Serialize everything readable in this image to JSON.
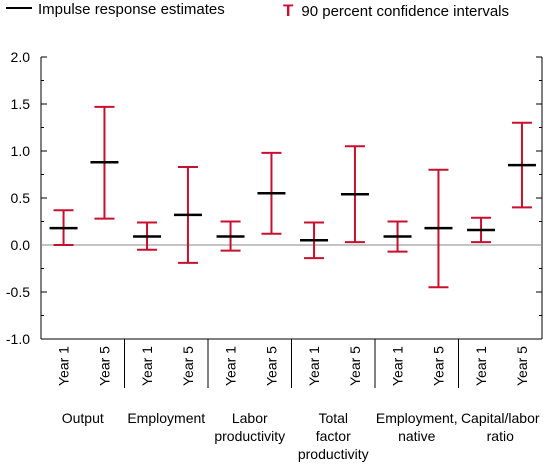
{
  "legend": {
    "estimate_label": "Impulse response estimates",
    "ci_label": "90 percent confidence intervals",
    "ci_glyph": "T"
  },
  "colors": {
    "estimate": "#000000",
    "ci": "#c8102e",
    "zero_line": "#888888",
    "axis": "#000000"
  },
  "chart_data": {
    "type": "errorbar",
    "ylim": [
      -1.0,
      2.0
    ],
    "yticks": [
      "2.0",
      "1.5",
      "1.0",
      "0.5",
      "0.0",
      "-0.5",
      "-1.0"
    ],
    "ytick_values": [
      2.0,
      1.5,
      1.0,
      0.5,
      0.0,
      -0.5,
      -1.0
    ],
    "groups": [
      {
        "label": [
          "Output"
        ],
        "points": [
          {
            "x": "Year 1",
            "estimate": 0.18,
            "low": 0.0,
            "high": 0.37
          },
          {
            "x": "Year 5",
            "estimate": 0.88,
            "low": 0.28,
            "high": 1.47
          }
        ]
      },
      {
        "label": [
          "Employment"
        ],
        "points": [
          {
            "x": "Year 1",
            "estimate": 0.09,
            "low": -0.05,
            "high": 0.24
          },
          {
            "x": "Year 5",
            "estimate": 0.32,
            "low": -0.19,
            "high": 0.83
          }
        ]
      },
      {
        "label": [
          "Labor",
          "productivity"
        ],
        "points": [
          {
            "x": "Year 1",
            "estimate": 0.09,
            "low": -0.06,
            "high": 0.25
          },
          {
            "x": "Year 5",
            "estimate": 0.55,
            "low": 0.12,
            "high": 0.98
          }
        ]
      },
      {
        "label": [
          "Total",
          "factor",
          "productivity"
        ],
        "points": [
          {
            "x": "Year 1",
            "estimate": 0.05,
            "low": -0.14,
            "high": 0.24
          },
          {
            "x": "Year 5",
            "estimate": 0.54,
            "low": 0.03,
            "high": 1.05
          }
        ]
      },
      {
        "label": [
          "Employment,",
          "native"
        ],
        "points": [
          {
            "x": "Year 1",
            "estimate": 0.09,
            "low": -0.07,
            "high": 0.25
          },
          {
            "x": "Year 5",
            "estimate": 0.18,
            "low": -0.45,
            "high": 0.8
          }
        ]
      },
      {
        "label": [
          "Capital/labor",
          "ratio"
        ],
        "points": [
          {
            "x": "Year 1",
            "estimate": 0.16,
            "low": 0.03,
            "high": 0.29
          },
          {
            "x": "Year 5",
            "estimate": 0.85,
            "low": 0.4,
            "high": 1.3
          }
        ]
      }
    ]
  }
}
